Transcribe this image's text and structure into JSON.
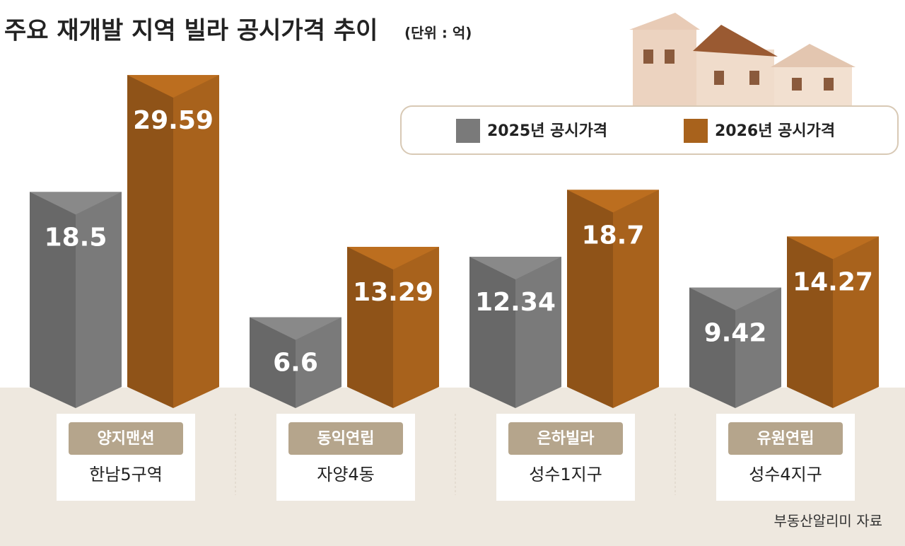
{
  "chart_data": {
    "type": "bar",
    "title": "주요 재개발 지역 빌라 공시가격 추이",
    "subtitle": "(단위 : 억)",
    "categories": [
      "양지맨션",
      "동익연립",
      "은하빌라",
      "유원연립"
    ],
    "category_subtitles": [
      "한남5구역",
      "자양4동",
      "성수1지구",
      "성수4지구"
    ],
    "series": [
      {
        "name": "2025년 공시가격",
        "color": "#7a7a7a",
        "values": [
          18.5,
          6.6,
          12.34,
          9.42
        ]
      },
      {
        "name": "2026년 공시가격",
        "color": "#a8621c",
        "values": [
          29.59,
          13.29,
          18.7,
          14.27
        ]
      }
    ],
    "source": "부동산알리미 자료"
  }
}
